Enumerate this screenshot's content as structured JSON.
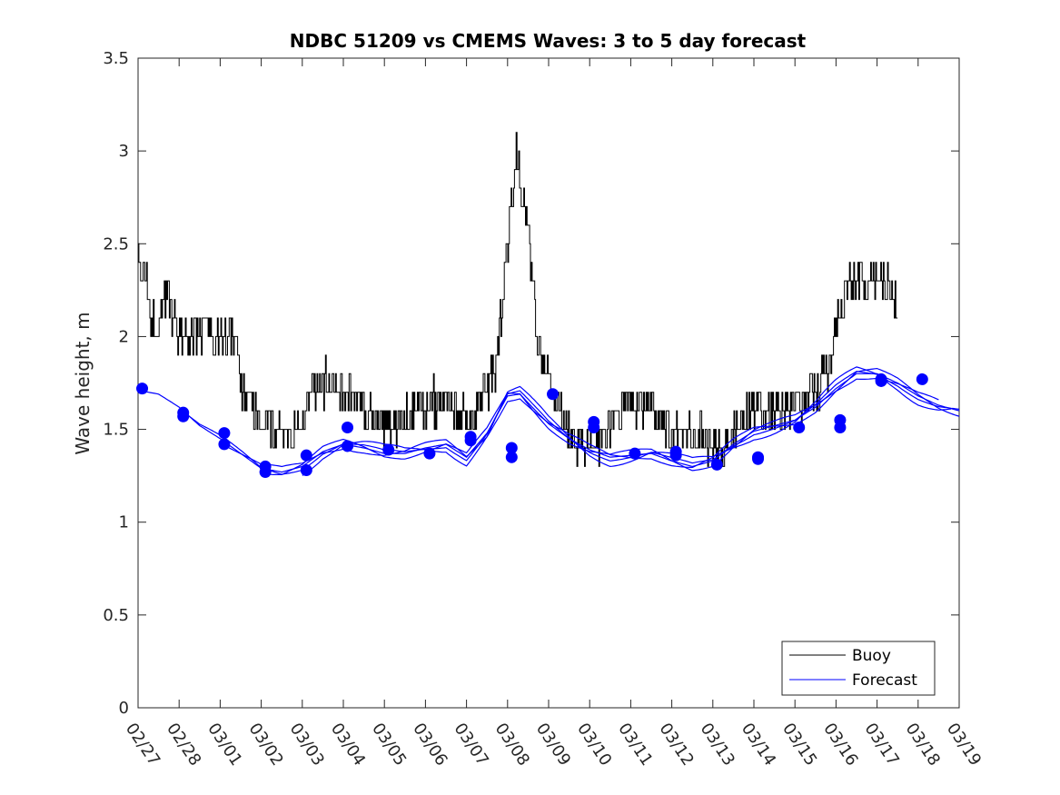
{
  "chart_data": {
    "type": "line",
    "title": "NDBC 51209 vs CMEMS Waves: 3 to 5 day forecast",
    "xlabel": "",
    "ylabel": "Wave height, m",
    "ylim": [
      0,
      3.5
    ],
    "yticks": [
      0,
      0.5,
      1,
      1.5,
      2,
      2.5,
      3,
      3.5
    ],
    "ytick_labels": [
      "0",
      "0.5",
      "1",
      "1.5",
      "2",
      "2.5",
      "3",
      "3.5"
    ],
    "xlim": [
      0,
      20
    ],
    "x_unit": "days since 02/27",
    "xtick_labels": [
      "02/27",
      "02/28",
      "03/01",
      "03/02",
      "03/03",
      "03/04",
      "03/05",
      "03/06",
      "03/07",
      "03/08",
      "03/09",
      "03/10",
      "03/11",
      "03/12",
      "03/13",
      "03/14",
      "03/15",
      "03/16",
      "03/17",
      "03/18",
      "03/19"
    ],
    "legend": {
      "position": "bottom-right",
      "entries": [
        "Buoy",
        "Forecast"
      ]
    },
    "colors": {
      "buoy": "#000000",
      "forecast": "#0000ff"
    },
    "buoy_anchors": [
      [
        0.0,
        2.45
      ],
      [
        0.15,
        2.3
      ],
      [
        0.3,
        2.15
      ],
      [
        0.45,
        2.0
      ],
      [
        0.6,
        2.2
      ],
      [
        0.75,
        2.15
      ],
      [
        1.0,
        2.0
      ],
      [
        1.3,
        2.0
      ],
      [
        1.6,
        2.05
      ],
      [
        1.9,
        2.0
      ],
      [
        2.2,
        2.0
      ],
      [
        2.4,
        1.95
      ],
      [
        2.5,
        1.75
      ],
      [
        2.8,
        1.6
      ],
      [
        3.1,
        1.52
      ],
      [
        3.4,
        1.5
      ],
      [
        3.7,
        1.5
      ],
      [
        4.0,
        1.55
      ],
      [
        4.2,
        1.7
      ],
      [
        4.5,
        1.75
      ],
      [
        4.8,
        1.8
      ],
      [
        5.0,
        1.7
      ],
      [
        5.3,
        1.65
      ],
      [
        5.6,
        1.6
      ],
      [
        5.9,
        1.55
      ],
      [
        6.2,
        1.5
      ],
      [
        6.5,
        1.55
      ],
      [
        6.8,
        1.6
      ],
      [
        7.1,
        1.65
      ],
      [
        7.4,
        1.65
      ],
      [
        7.7,
        1.6
      ],
      [
        8.0,
        1.55
      ],
      [
        8.3,
        1.65
      ],
      [
        8.7,
        1.8
      ],
      [
        9.0,
        2.45
      ],
      [
        9.2,
        3.0
      ],
      [
        9.5,
        2.55
      ],
      [
        9.75,
        1.9
      ],
      [
        10.0,
        1.75
      ],
      [
        10.3,
        1.6
      ],
      [
        10.6,
        1.45
      ],
      [
        11.0,
        1.4
      ],
      [
        11.3,
        1.42
      ],
      [
        11.6,
        1.5
      ],
      [
        11.9,
        1.65
      ],
      [
        12.2,
        1.65
      ],
      [
        12.5,
        1.62
      ],
      [
        12.8,
        1.55
      ],
      [
        13.2,
        1.5
      ],
      [
        13.6,
        1.48
      ],
      [
        14.0,
        1.4
      ],
      [
        14.3,
        1.35
      ],
      [
        14.6,
        1.55
      ],
      [
        15.0,
        1.6
      ],
      [
        15.4,
        1.6
      ],
      [
        15.8,
        1.62
      ],
      [
        16.2,
        1.65
      ],
      [
        16.6,
        1.72
      ],
      [
        16.9,
        1.9
      ],
      [
        17.1,
        2.2
      ],
      [
        17.4,
        2.3
      ],
      [
        17.8,
        2.3
      ],
      [
        18.2,
        2.3
      ],
      [
        18.4,
        2.2
      ],
      [
        18.5,
        2.15
      ]
    ],
    "buoy_range": [
      0,
      18.5
    ],
    "buoy_noise": 0.11,
    "forecast_base": [
      [
        0.0,
        1.71
      ],
      [
        0.5,
        1.69
      ],
      [
        1.0,
        1.62
      ],
      [
        1.5,
        1.52
      ],
      [
        2.0,
        1.45
      ],
      [
        2.5,
        1.37
      ],
      [
        3.0,
        1.29
      ],
      [
        3.5,
        1.27
      ],
      [
        4.0,
        1.3
      ],
      [
        4.5,
        1.38
      ],
      [
        5.0,
        1.42
      ],
      [
        5.5,
        1.4
      ],
      [
        6.0,
        1.37
      ],
      [
        6.5,
        1.37
      ],
      [
        7.0,
        1.4
      ],
      [
        7.5,
        1.42
      ],
      [
        8.0,
        1.35
      ],
      [
        8.5,
        1.48
      ],
      [
        9.0,
        1.68
      ],
      [
        9.3,
        1.69
      ],
      [
        9.6,
        1.62
      ],
      [
        10.0,
        1.53
      ],
      [
        10.5,
        1.45
      ],
      [
        11.0,
        1.39
      ],
      [
        11.5,
        1.35
      ],
      [
        12.0,
        1.36
      ],
      [
        12.5,
        1.37
      ],
      [
        13.0,
        1.33
      ],
      [
        13.5,
        1.3
      ],
      [
        14.0,
        1.33
      ],
      [
        14.5,
        1.42
      ],
      [
        15.0,
        1.49
      ],
      [
        15.5,
        1.52
      ],
      [
        16.0,
        1.55
      ],
      [
        16.5,
        1.62
      ],
      [
        17.0,
        1.72
      ],
      [
        17.5,
        1.8
      ],
      [
        18.0,
        1.8
      ],
      [
        18.5,
        1.75
      ],
      [
        19.0,
        1.68
      ],
      [
        19.5,
        1.63
      ],
      [
        20.0,
        1.6
      ]
    ],
    "forecast_series": [
      {
        "name": "Forecast",
        "start": 0.0,
        "end": 20.0,
        "offset": 0.0
      },
      {
        "name": "Forecast",
        "start": 1.0,
        "end": 20.0,
        "offset": -0.02
      },
      {
        "name": "Forecast",
        "start": 2.0,
        "end": 20.0,
        "offset": 0.03
      },
      {
        "name": "Forecast",
        "start": 3.0,
        "end": 19.5,
        "offset": -0.03
      },
      {
        "name": "Forecast",
        "start": 4.0,
        "end": 19.8,
        "offset": 0.05
      }
    ],
    "forecast_markers": [
      [
        0.1,
        1.72
      ],
      [
        1.1,
        1.59
      ],
      [
        1.1,
        1.57
      ],
      [
        2.1,
        1.48
      ],
      [
        2.1,
        1.42
      ],
      [
        3.1,
        1.3
      ],
      [
        3.1,
        1.27
      ],
      [
        4.1,
        1.36
      ],
      [
        4.1,
        1.28
      ],
      [
        5.1,
        1.51
      ],
      [
        5.1,
        1.41
      ],
      [
        6.1,
        1.39
      ],
      [
        7.1,
        1.37
      ],
      [
        8.1,
        1.46
      ],
      [
        8.1,
        1.44
      ],
      [
        9.1,
        1.4
      ],
      [
        9.1,
        1.35
      ],
      [
        10.1,
        1.69
      ],
      [
        11.1,
        1.54
      ],
      [
        11.1,
        1.51
      ],
      [
        12.1,
        1.37
      ],
      [
        13.1,
        1.38
      ],
      [
        13.1,
        1.36
      ],
      [
        14.1,
        1.31
      ],
      [
        15.1,
        1.35
      ],
      [
        15.1,
        1.34
      ],
      [
        16.1,
        1.51
      ],
      [
        17.1,
        1.55
      ],
      [
        17.1,
        1.51
      ],
      [
        18.1,
        1.77
      ],
      [
        18.1,
        1.76
      ],
      [
        19.1,
        1.77
      ]
    ]
  }
}
